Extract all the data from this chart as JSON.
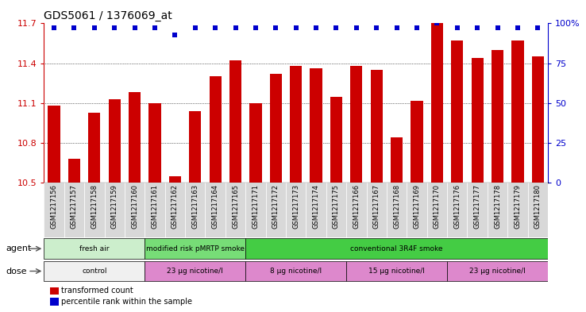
{
  "title": "GDS5061 / 1376069_at",
  "samples": [
    "GSM1217156",
    "GSM1217157",
    "GSM1217158",
    "GSM1217159",
    "GSM1217160",
    "GSM1217161",
    "GSM1217162",
    "GSM1217163",
    "GSM1217164",
    "GSM1217165",
    "GSM1217171",
    "GSM1217172",
    "GSM1217173",
    "GSM1217174",
    "GSM1217175",
    "GSM1217166",
    "GSM1217167",
    "GSM1217168",
    "GSM1217169",
    "GSM1217170",
    "GSM1217176",
    "GSM1217177",
    "GSM1217178",
    "GSM1217179",
    "GSM1217180"
  ],
  "bar_values": [
    11.08,
    10.68,
    11.03,
    11.13,
    11.18,
    11.1,
    10.55,
    11.04,
    11.3,
    11.42,
    11.1,
    11.32,
    11.38,
    11.36,
    11.15,
    11.38,
    11.35,
    10.84,
    11.12,
    11.7,
    11.57,
    11.44,
    11.5,
    11.57,
    11.45
  ],
  "percentile_values": [
    97,
    97,
    97,
    97,
    97,
    97,
    93,
    97,
    97,
    97,
    97,
    97,
    97,
    97,
    97,
    97,
    97,
    97,
    97,
    100,
    97,
    97,
    97,
    97,
    97
  ],
  "ylim_left": [
    10.5,
    11.7
  ],
  "ylim_right": [
    0,
    100
  ],
  "yticks_left": [
    10.5,
    10.8,
    11.1,
    11.4,
    11.7
  ],
  "yticks_right": [
    0,
    25,
    50,
    75,
    100
  ],
  "bar_color": "#cc0000",
  "percentile_color": "#0000cc",
  "agent_groups": [
    {
      "label": "fresh air",
      "start": 0,
      "end": 5,
      "color": "#cceecc"
    },
    {
      "label": "modified risk pMRTP smoke",
      "start": 5,
      "end": 10,
      "color": "#77dd77"
    },
    {
      "label": "conventional 3R4F smoke",
      "start": 10,
      "end": 25,
      "color": "#44cc44"
    }
  ],
  "dose_groups": [
    {
      "label": "control",
      "start": 0,
      "end": 5,
      "color": "#f5f5f5"
    },
    {
      "label": "23 μg nicotine/l",
      "start": 5,
      "end": 10,
      "color": "#dd88dd"
    },
    {
      "label": "8 μg nicotine/l",
      "start": 10,
      "end": 15,
      "color": "#dd88dd"
    },
    {
      "label": "15 μg nicotine/l",
      "start": 15,
      "end": 20,
      "color": "#dd88dd"
    },
    {
      "label": "23 μg nicotine/l",
      "start": 20,
      "end": 25,
      "color": "#dd88dd"
    }
  ],
  "legend_bar_label": "transformed count",
  "legend_pct_label": "percentile rank within the sample",
  "agent_label": "agent",
  "dose_label": "dose",
  "xtick_bg": "#d8d8d8",
  "fig_bg": "#ffffff"
}
